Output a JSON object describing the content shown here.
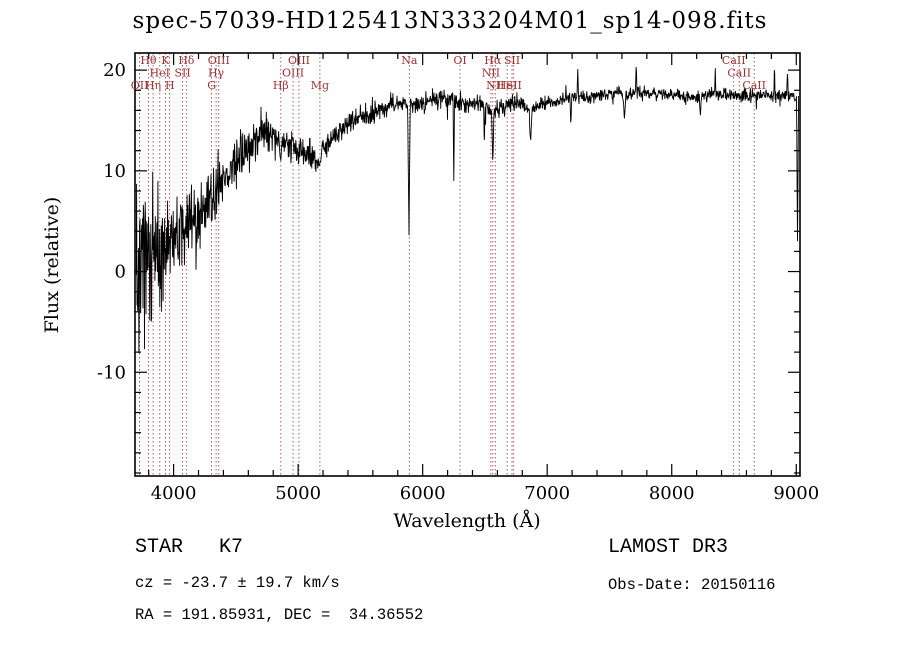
{
  "title": "spec-57039-HD125413N333204M01_sp14-098.fits",
  "annotations": {
    "class_line": "STAR   K7",
    "survey": "LAMOST DR3",
    "cz_line": "cz = -23.7 ± 19.7 km/s",
    "obs_date": "Obs-Date: 20150116",
    "radec_line": "RA = 191.85931, DEC =  34.36552"
  },
  "chart_data": {
    "type": "line",
    "title": "spec-57039-HD125413N333204M01_sp14-098.fits",
    "xlabel": "Wavelength (Å)",
    "ylabel": "Flux (relative)",
    "xlim": [
      3690,
      9030
    ],
    "ylim": [
      -20.3,
      21.7
    ],
    "x_major_ticks": [
      4000,
      5000,
      6000,
      7000,
      8000,
      9000
    ],
    "x_minor_step": 200,
    "y_major_ticks": [
      -10,
      0,
      10,
      20
    ],
    "y_minor_step": 2,
    "grid": false,
    "legend": "none",
    "line_color": "#000000",
    "marker_color": "#993333",
    "spectral_lines": [
      {
        "label": "OII",
        "wavelength": 3727,
        "row": 3
      },
      {
        "label": "Hθ",
        "wavelength": 3798,
        "row": 1
      },
      {
        "label": "Hη",
        "wavelength": 3835,
        "row": 3
      },
      {
        "label": "HeI",
        "wavelength": 3889,
        "row": 2
      },
      {
        "label": "K",
        "wavelength": 3934,
        "row": 1
      },
      {
        "label": "H",
        "wavelength": 3969,
        "row": 3
      },
      {
        "label": "SII",
        "wavelength": 4072,
        "row": 2
      },
      {
        "label": "Hδ",
        "wavelength": 4102,
        "row": 1
      },
      {
        "label": "G",
        "wavelength": 4305,
        "row": 3
      },
      {
        "label": "Hγ",
        "wavelength": 4341,
        "row": 2
      },
      {
        "label": "OIII",
        "wavelength": 4363,
        "row": 1
      },
      {
        "label": "Hβ",
        "wavelength": 4861,
        "row": 3
      },
      {
        "label": "OIII",
        "wavelength": 4959,
        "row": 2
      },
      {
        "label": "OIII",
        "wavelength": 5007,
        "row": 1
      },
      {
        "label": "Mg",
        "wavelength": 5175,
        "row": 3
      },
      {
        "label": "Na",
        "wavelength": 5893,
        "row": 1
      },
      {
        "label": "OI",
        "wavelength": 6300,
        "row": 1
      },
      {
        "label": "NII",
        "wavelength": 6548,
        "row": 2
      },
      {
        "label": "Hα",
        "wavelength": 6563,
        "row": 1
      },
      {
        "label": "NII",
        "wavelength": 6583,
        "row": 3
      },
      {
        "label": "HeI",
        "wavelength": 6678,
        "row": 3
      },
      {
        "label": "SII",
        "wavelength": 6717,
        "row": 1
      },
      {
        "label": "SII",
        "wavelength": 6731,
        "row": 3
      },
      {
        "label": "CaII",
        "wavelength": 8498,
        "row": 1
      },
      {
        "label": "CaII",
        "wavelength": 8542,
        "row": 2
      },
      {
        "label": "CaII",
        "wavelength": 8662,
        "row": 3
      }
    ],
    "continuum": [
      [
        3700,
        -0.5
      ],
      [
        3750,
        0.5
      ],
      [
        3800,
        1.0
      ],
      [
        3850,
        1.5
      ],
      [
        3900,
        2.0
      ],
      [
        3950,
        2.5
      ],
      [
        4000,
        3.0
      ],
      [
        4100,
        4.5
      ],
      [
        4200,
        5.5
      ],
      [
        4300,
        7.0
      ],
      [
        4400,
        9.0
      ],
      [
        4500,
        11.0
      ],
      [
        4600,
        12.5
      ],
      [
        4700,
        14.0
      ],
      [
        4760,
        13.8
      ],
      [
        4820,
        13.0
      ],
      [
        4880,
        12.6
      ],
      [
        4950,
        12.8
      ],
      [
        5000,
        12.0
      ],
      [
        5080,
        11.6
      ],
      [
        5150,
        11.0
      ],
      [
        5250,
        13.0
      ],
      [
        5350,
        14.0
      ],
      [
        5450,
        15.0
      ],
      [
        5550,
        15.5
      ],
      [
        5650,
        16.0
      ],
      [
        5750,
        16.6
      ],
      [
        5850,
        16.8
      ],
      [
        5950,
        16.4
      ],
      [
        6050,
        17.0
      ],
      [
        6150,
        17.3
      ],
      [
        6250,
        16.8
      ],
      [
        6350,
        16.5
      ],
      [
        6450,
        16.8
      ],
      [
        6550,
        15.8
      ],
      [
        6650,
        16.3
      ],
      [
        6750,
        16.8
      ],
      [
        6850,
        16.2
      ],
      [
        6950,
        16.6
      ],
      [
        7050,
        16.8
      ],
      [
        7150,
        17.2
      ],
      [
        7250,
        17.4
      ],
      [
        7350,
        17.2
      ],
      [
        7450,
        17.6
      ],
      [
        7550,
        17.8
      ],
      [
        7650,
        17.6
      ],
      [
        7750,
        17.8
      ],
      [
        7850,
        17.5
      ],
      [
        7950,
        17.6
      ],
      [
        8050,
        17.5
      ],
      [
        8150,
        17.2
      ],
      [
        8250,
        17.4
      ],
      [
        8350,
        17.6
      ],
      [
        8450,
        17.5
      ],
      [
        8550,
        17.6
      ],
      [
        8650,
        17.5
      ],
      [
        8750,
        17.6
      ],
      [
        8850,
        17.6
      ],
      [
        8950,
        17.4
      ],
      [
        9030,
        17.2
      ]
    ],
    "noise_profile": [
      [
        3700,
        7.0
      ],
      [
        3800,
        4.8
      ],
      [
        3900,
        3.8
      ],
      [
        4000,
        3.2
      ],
      [
        4150,
        2.6
      ],
      [
        4300,
        2.2
      ],
      [
        4500,
        1.8
      ],
      [
        4700,
        1.5
      ],
      [
        5000,
        1.1
      ],
      [
        5300,
        0.9
      ],
      [
        5600,
        0.8
      ],
      [
        6000,
        0.75
      ],
      [
        6500,
        0.65
      ],
      [
        7000,
        0.5
      ],
      [
        7500,
        0.45
      ],
      [
        8000,
        0.45
      ],
      [
        8500,
        0.5
      ],
      [
        9030,
        0.55
      ]
    ],
    "features": [
      {
        "center": 4861,
        "width": 10,
        "flux": 11.0
      },
      {
        "center": 5172,
        "width": 18,
        "flux": 10.5
      },
      {
        "center": 5890,
        "width": 10,
        "flux": 3.6
      },
      {
        "center": 6250,
        "width": 6,
        "flux": 9.0
      },
      {
        "center": 6495,
        "width": 6,
        "flux": 12.5
      },
      {
        "center": 6563,
        "width": 10,
        "flux": 10.5
      },
      {
        "center": 6867,
        "width": 12,
        "flux": 12.8
      },
      {
        "center": 7190,
        "width": 8,
        "flux": 14.5
      },
      {
        "center": 7245,
        "width": 6,
        "flux": 20.6
      },
      {
        "center": 7620,
        "width": 12,
        "flux": 15.0
      },
      {
        "center": 7715,
        "width": 6,
        "flux": 20.9
      },
      {
        "center": 8230,
        "width": 10,
        "flux": 15.5
      },
      {
        "center": 8350,
        "width": 5,
        "flux": 20.2
      },
      {
        "center": 8825,
        "width": 5,
        "flux": 20.6
      },
      {
        "center": 8930,
        "width": 5,
        "flux": 20.3
      },
      {
        "center": 9010,
        "width": 8,
        "flux": 3.0
      }
    ],
    "noise_seed": 20150116,
    "sample_step": 3
  }
}
